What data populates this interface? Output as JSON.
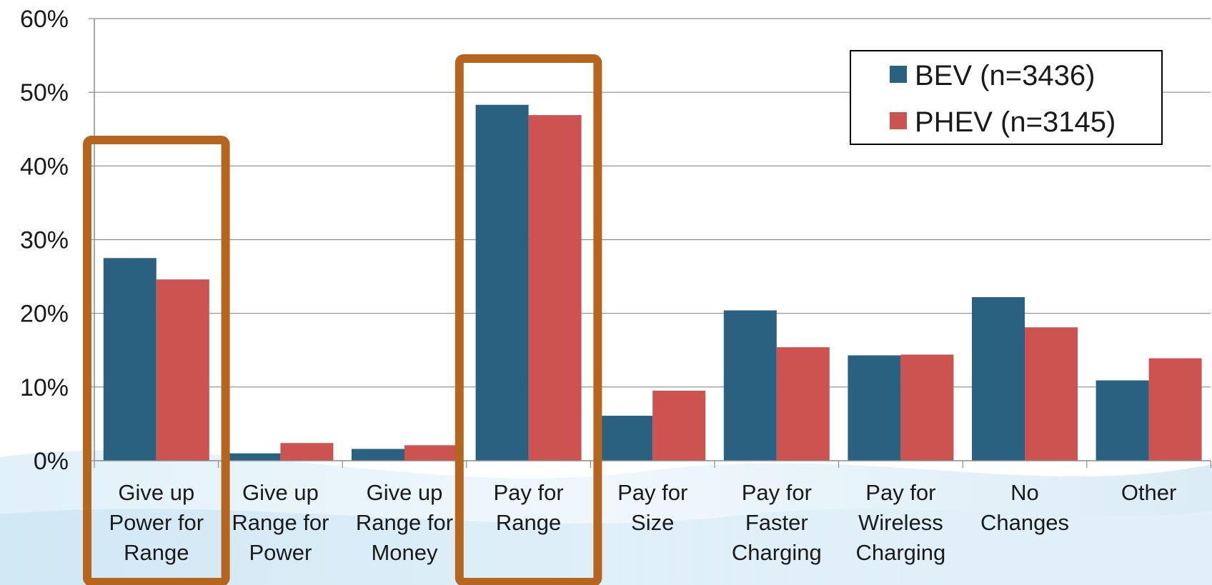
{
  "chart_data": {
    "type": "bar",
    "title": "",
    "xlabel": "",
    "ylabel": "",
    "ylim": [
      0,
      60
    ],
    "y_unit": "%",
    "yticks": [
      0,
      10,
      20,
      30,
      40,
      50,
      60
    ],
    "ytick_labels": [
      "0%",
      "10%",
      "20%",
      "30%",
      "40%",
      "50%",
      "60%"
    ],
    "grid": true,
    "legend_position": "top-right",
    "categories": [
      [
        "Give up",
        "Power for",
        "Range"
      ],
      [
        "Give up",
        "Range for",
        "Power"
      ],
      [
        "Give up",
        "Range for",
        "Money"
      ],
      [
        "Pay for",
        "Range"
      ],
      [
        "Pay for",
        "Size"
      ],
      [
        "Pay for",
        "Faster",
        "Charging"
      ],
      [
        "Pay for",
        "Wireless",
        "Charging"
      ],
      [
        "No",
        "Changes"
      ],
      [
        "Other"
      ]
    ],
    "series": [
      {
        "name": "BEV (n=3436)",
        "color": "#2a6180",
        "values": [
          27.5,
          1.0,
          1.6,
          48.3,
          6.1,
          20.4,
          14.3,
          22.2,
          10.9
        ]
      },
      {
        "name": "PHEV (n=3145)",
        "color": "#cc5350",
        "values": [
          24.6,
          2.4,
          2.1,
          46.9,
          9.5,
          15.4,
          14.4,
          18.1,
          13.9
        ]
      }
    ],
    "highlighted_categories": [
      0,
      3
    ],
    "highlight_color": "#b5651d"
  }
}
